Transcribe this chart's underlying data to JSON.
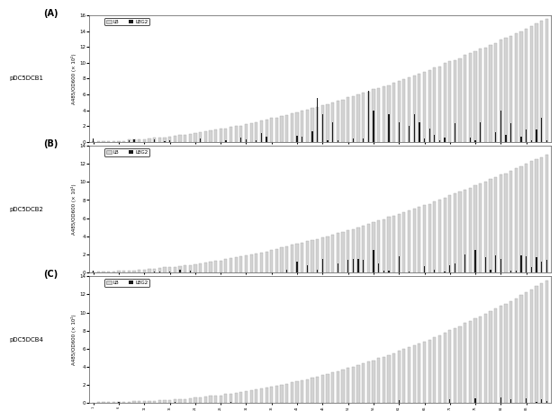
{
  "panels": [
    {
      "label": "A",
      "title": "pDC5DCB1",
      "ylim": [
        0,
        16
      ],
      "yticks": [
        0,
        2,
        4,
        6,
        8,
        10,
        12,
        14,
        16
      ],
      "n_bars": 90,
      "lb_max": 15.5,
      "lb_curve": 1.8,
      "lbg2_pattern": "A"
    },
    {
      "label": "B",
      "title": "pDC5DCB2",
      "ylim": [
        0,
        14
      ],
      "yticks": [
        0,
        2,
        4,
        6,
        8,
        10,
        12,
        14
      ],
      "n_bars": 90,
      "lb_max": 13.0,
      "lb_curve": 1.8,
      "lbg2_pattern": "B"
    },
    {
      "label": "C",
      "title": "pDC5DCB4",
      "ylim": [
        0,
        14
      ],
      "yticks": [
        0,
        2,
        4,
        6,
        8,
        10,
        12,
        14
      ],
      "n_bars": 90,
      "lb_max": 13.5,
      "lb_curve": 2.2,
      "lbg2_pattern": "C"
    }
  ],
  "ylabel": "A485/OD600 (× 10²)",
  "lb_color": "#d3d3d3",
  "lbg2_color": "#1a1a1a",
  "bar_width": 0.4,
  "legend_lb": "LB",
  "legend_lbg2": "LBG2"
}
